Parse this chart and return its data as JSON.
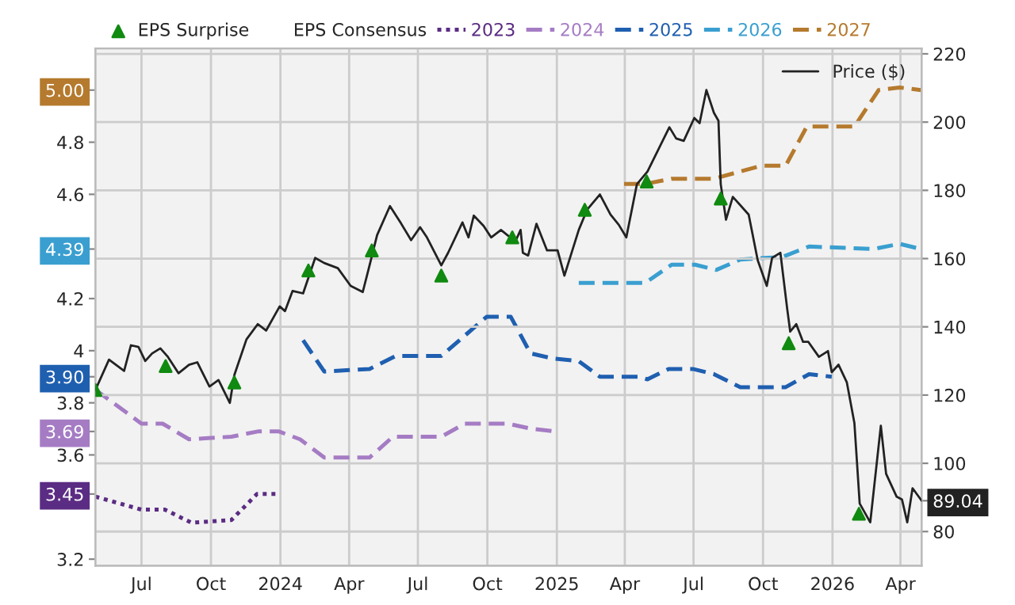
{
  "chart_data": {
    "type": "line",
    "legend_title": "EPS Consensus",
    "xlim": [
      "2023-05-01",
      "2026-04-29"
    ],
    "xticks": [
      {
        "value": "2023-07-01",
        "label": "Jul"
      },
      {
        "value": "2023-10-01",
        "label": "Oct"
      },
      {
        "value": "2024-01-01",
        "label": "2024"
      },
      {
        "value": "2024-04-01",
        "label": "Apr"
      },
      {
        "value": "2024-07-01",
        "label": "Jul"
      },
      {
        "value": "2024-10-01",
        "label": "Oct"
      },
      {
        "value": "2025-01-01",
        "label": "2025"
      },
      {
        "value": "2025-04-01",
        "label": "Apr"
      },
      {
        "value": "2025-07-01",
        "label": "Jul"
      },
      {
        "value": "2025-10-01",
        "label": "Oct"
      },
      {
        "value": "2026-01-01",
        "label": "2026"
      },
      {
        "value": "2026-04-01",
        "label": "Apr"
      }
    ],
    "ylim": [
      3.175,
      5.16
    ],
    "yticks": [
      3.2,
      3.45,
      3.6,
      3.69,
      3.8,
      {
        "value": 3.9,
        "label": "3.90"
      },
      4,
      4.2,
      4.39,
      4.6,
      4.8,
      {
        "value": 5.0,
        "label": "5.00"
      }
    ],
    "y2lim": [
      70,
      221.6
    ],
    "y2ticks": [
      80,
      {
        "value": 89.04,
        "label": "89.04"
      },
      100,
      120,
      140,
      160,
      180,
      200,
      220
    ],
    "grid": true,
    "legend": "top",
    "series": [
      {
        "name": "EPS Surprise",
        "type": "scatter",
        "axis": "y2",
        "marker": "triangle",
        "color": "#108a10",
        "x": [
          "2023-05-01",
          "2023-08-02",
          "2023-11-01",
          "2024-02-07",
          "2024-05-01",
          "2024-08-01",
          "2024-11-03",
          "2025-02-07",
          "2025-04-30",
          "2025-08-06",
          "2025-11-04",
          "2026-02-05"
        ],
        "values": [
          121.5,
          128.5,
          123.7,
          156.5,
          162.4,
          155,
          166.2,
          174.3,
          182.6,
          177.6,
          135.2,
          85.2
        ]
      },
      {
        "name": "2023",
        "line_style": "dotted",
        "color": "#5b2c83",
        "x": [
          "2023-05-01",
          "2023-07-01",
          "2023-08-01",
          "2023-09-05",
          "2023-10-28",
          "2023-12-01",
          "2023-12-31"
        ],
        "values": [
          3.44,
          3.39,
          3.39,
          3.34,
          3.35,
          3.45,
          3.45
        ]
      },
      {
        "name": "2024",
        "line_style": "dashed",
        "color": "#a57cc4",
        "x": [
          "2023-05-01",
          "2023-07-01",
          "2023-07-29",
          "2023-09-02",
          "2023-10-28",
          "2023-12-02",
          "2023-12-30",
          "2024-01-27",
          "2024-02-28",
          "2024-04-28",
          "2024-05-29",
          "2024-08-01",
          "2024-09-01",
          "2024-10-28",
          "2024-11-29",
          "2024-12-30"
        ],
        "values": [
          3.85,
          3.72,
          3.72,
          3.66,
          3.67,
          3.69,
          3.69,
          3.66,
          3.59,
          3.59,
          3.67,
          3.67,
          3.72,
          3.72,
          3.7,
          3.69
        ]
      },
      {
        "name": "2025",
        "line_style": "dashed",
        "color": "#1f5fb0",
        "x": [
          "2024-01-31",
          "2024-02-28",
          "2024-04-28",
          "2024-06-02",
          "2024-08-01",
          "2024-09-30",
          "2024-11-01",
          "2024-11-27",
          "2024-12-27",
          "2025-01-30",
          "2025-02-27",
          "2025-04-21",
          "2025-05-01",
          "2025-05-29",
          "2025-06-30",
          "2025-07-28",
          "2025-09-01",
          "2025-10-31",
          "2025-12-01",
          "2025-12-31"
        ],
        "values": [
          4.04,
          3.92,
          3.93,
          3.98,
          3.98,
          4.13,
          4.13,
          3.99,
          3.97,
          3.96,
          3.9,
          3.9,
          3.89,
          3.93,
          3.93,
          3.91,
          3.86,
          3.86,
          3.91,
          3.9
        ]
      },
      {
        "name": "2026",
        "line_style": "dashed",
        "color": "#3a9fd0",
        "x": [
          "2025-01-30",
          "2025-04-28",
          "2025-06-02",
          "2025-07-03",
          "2025-07-31",
          "2025-09-01",
          "2025-10-27",
          "2025-12-01",
          "2026-02-24",
          "2026-03-31",
          "2026-04-28"
        ],
        "values": [
          4.26,
          4.26,
          4.33,
          4.33,
          4.31,
          4.35,
          4.36,
          4.4,
          4.39,
          4.41,
          4.39
        ]
      },
      {
        "name": "2027",
        "line_style": "dashed",
        "color": "#b57a2e",
        "x": [
          "2025-03-31",
          "2025-04-28",
          "2025-06-02",
          "2025-07-28",
          "2025-09-29",
          "2025-10-31",
          "2025-11-28",
          "2026-01-30",
          "2026-03-03",
          "2026-03-31",
          "2026-04-28"
        ],
        "values": [
          4.64,
          4.64,
          4.66,
          4.66,
          4.71,
          4.71,
          4.86,
          4.86,
          5.0,
          5.01,
          5.0
        ]
      },
      {
        "name": "Price ($)",
        "axis": "y2",
        "line_style": "solid",
        "color": "#222222",
        "x": [
          "2023-05-01",
          "2023-05-19",
          "2023-06-08",
          "2023-06-17",
          "2023-06-27",
          "2023-07-06",
          "2023-07-15",
          "2023-07-26",
          "2023-08-05",
          "2023-08-19",
          "2023-09-02",
          "2023-09-13",
          "2023-09-29",
          "2023-10-11",
          "2023-10-26",
          "2023-11-01",
          "2023-11-17",
          "2023-12-02",
          "2023-12-13",
          "2023-12-31",
          "2024-01-07",
          "2024-01-17",
          "2024-01-31",
          "2024-02-16",
          "2024-02-28",
          "2024-03-17",
          "2024-04-03",
          "2024-04-19",
          "2024-04-28",
          "2024-05-08",
          "2024-05-25",
          "2024-06-09",
          "2024-06-22",
          "2024-07-04",
          "2024-07-13",
          "2024-08-01",
          "2024-08-10",
          "2024-08-29",
          "2024-09-06",
          "2024-09-13",
          "2024-09-26",
          "2024-10-06",
          "2024-10-19",
          "2024-11-07",
          "2024-11-14",
          "2024-11-17",
          "2024-11-24",
          "2024-12-05",
          "2024-12-19",
          "2025-01-02",
          "2025-01-11",
          "2025-01-30",
          "2025-02-10",
          "2025-02-27",
          "2025-03-13",
          "2025-03-24",
          "2025-04-03",
          "2025-04-17",
          "2025-05-01",
          "2025-05-30",
          "2025-06-08",
          "2025-06-18",
          "2025-07-02",
          "2025-07-09",
          "2025-07-18",
          "2025-07-28",
          "2025-08-03",
          "2025-08-06",
          "2025-08-13",
          "2025-08-22",
          "2025-09-12",
          "2025-09-24",
          "2025-10-06",
          "2025-10-13",
          "2025-10-24",
          "2025-11-02",
          "2025-11-06",
          "2025-11-14",
          "2025-11-23",
          "2025-11-30",
          "2025-12-14",
          "2025-12-26",
          "2025-12-31",
          "2026-01-09",
          "2026-01-20",
          "2026-01-30",
          "2026-02-06",
          "2026-02-20",
          "2026-03-06",
          "2026-03-13",
          "2026-03-27",
          "2026-04-03",
          "2026-04-10",
          "2026-04-17",
          "2026-04-29"
        ],
        "values": [
          121.5,
          130.4,
          127.1,
          134.6,
          134.1,
          130,
          132.2,
          133.7,
          131.2,
          126.4,
          128.9,
          129.6,
          122.5,
          124.4,
          117.7,
          125.9,
          136.3,
          140.8,
          138.9,
          146,
          144.6,
          150.5,
          149.8,
          160.2,
          158.7,
          157.2,
          152,
          150.2,
          158,
          166.9,
          175.4,
          170.2,
          165.4,
          169.2,
          166.2,
          158,
          161.7,
          170.6,
          166.2,
          172.6,
          169.6,
          166.2,
          168.4,
          165,
          168.4,
          161.7,
          160.9,
          170.2,
          162.4,
          162.4,
          155,
          168.4,
          174.3,
          178.8,
          172.9,
          169.9,
          166.2,
          181.8,
          185.5,
          198.5,
          195.2,
          194.5,
          201.2,
          199.7,
          209.4,
          202.7,
          200.4,
          181.8,
          171.4,
          178.1,
          172.9,
          159.5,
          152,
          160.2,
          161.7,
          145.3,
          138.6,
          140.8,
          135.6,
          135.6,
          131.2,
          132.9,
          126.7,
          128.9,
          123.7,
          111.8,
          88.2,
          82.7,
          111,
          96.9,
          90.2,
          89.4,
          82.7,
          92.7,
          89.04
        ]
      }
    ]
  }
}
